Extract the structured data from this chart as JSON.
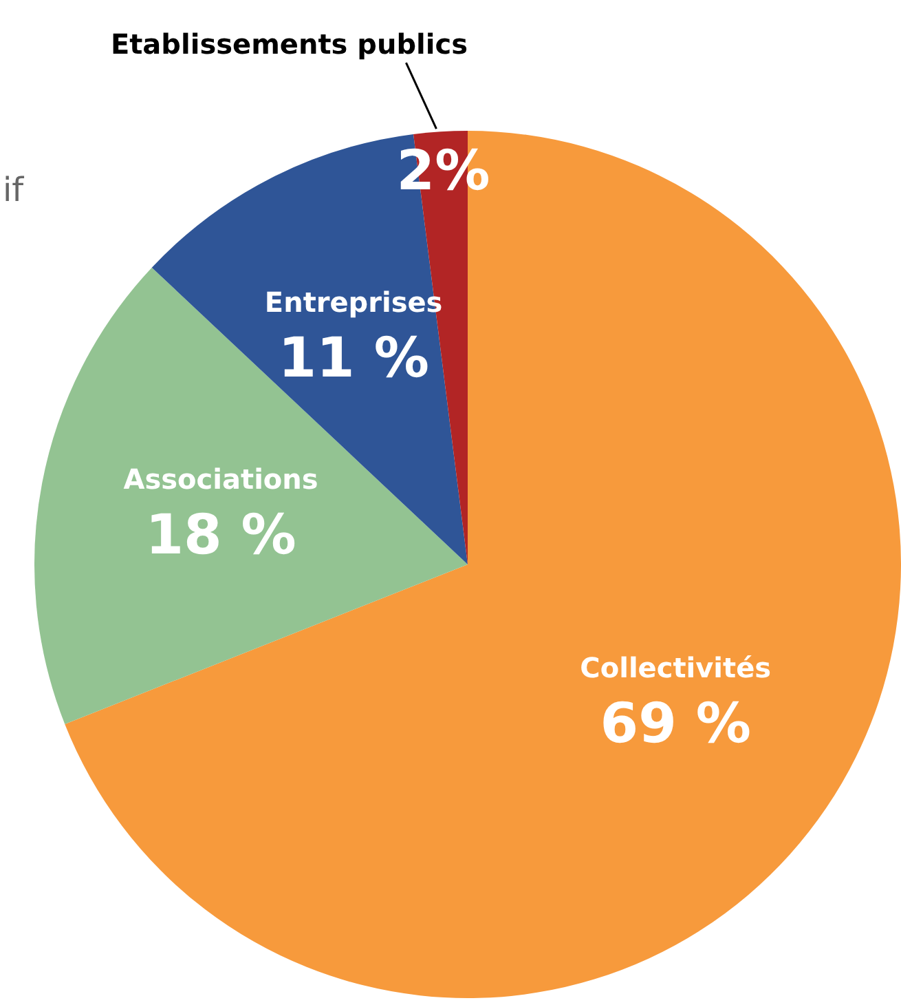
{
  "chart_data": {
    "type": "pie",
    "categories": [
      "Collectivités",
      "Associations",
      "Entreprises",
      "Etablissements publics"
    ],
    "values": [
      69,
      18,
      11,
      2
    ],
    "colors": [
      "#f79a3c",
      "#93c392",
      "#2f5597",
      "#b22525"
    ],
    "value_labels": [
      "69 %",
      "18 %",
      "11 %",
      "2%"
    ],
    "annotations": [
      "if"
    ],
    "legend": false
  }
}
